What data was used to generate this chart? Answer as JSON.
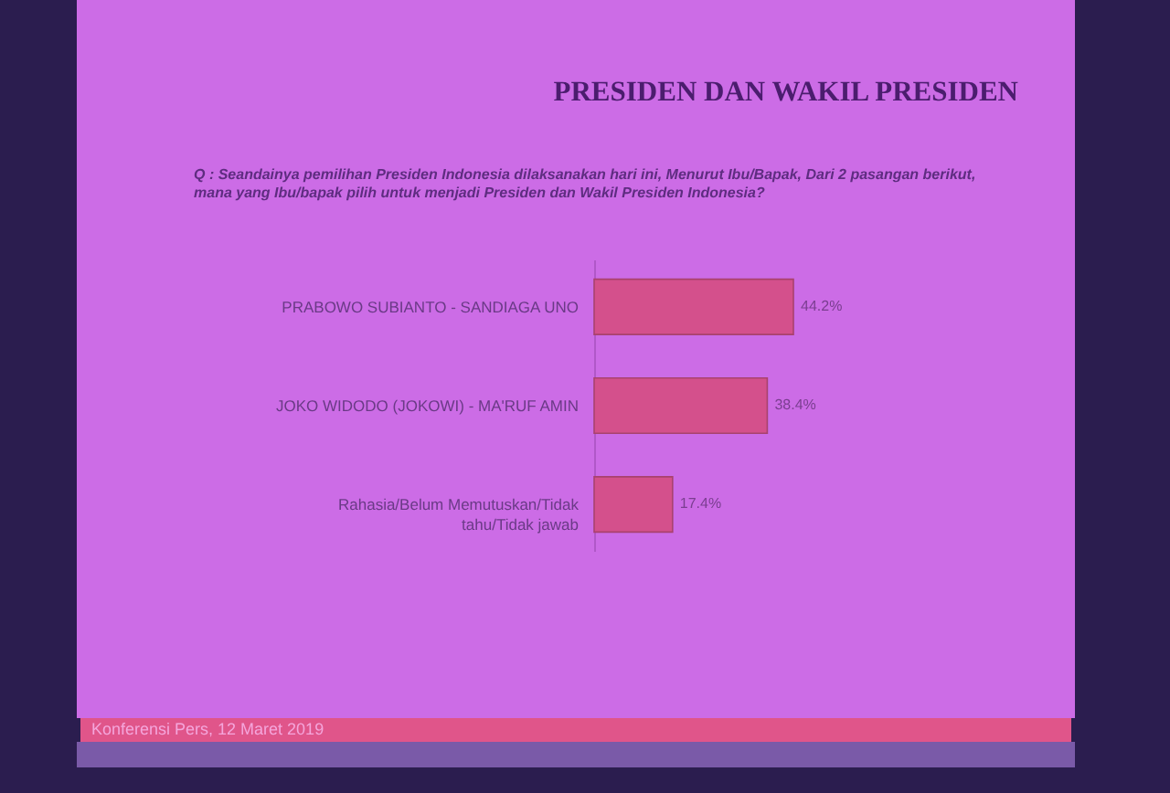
{
  "chart_data": {
    "type": "bar",
    "orientation": "horizontal",
    "title": "PRESIDEN DAN WAKIL PRESIDEN",
    "subtitle": "Q : Seandainya pemilihan Presiden Indonesia dilaksanakan hari ini, Menurut Ibu/Bapak, Dari 2 pasangan berikut, mana yang Ibu/bapak pilih untuk menjadi Presiden dan Wakil Presiden Indonesia?",
    "categories": [
      "PRABOWO SUBIANTO - SANDIAGA UNO",
      "JOKO WIDODO (JOKOWI) - MA'RUF AMIN",
      "Rahasia/Belum Memutuskan/Tidak tahu/Tidak jawab"
    ],
    "values": [
      44.2,
      38.4,
      17.4
    ],
    "value_labels": [
      "44.2%",
      "38.4%",
      "17.4%"
    ],
    "color": "#d4508c",
    "tick_labels": "y",
    "annotations": [
      "Konferensi Pers, 12 Maret 2019"
    ]
  }
}
